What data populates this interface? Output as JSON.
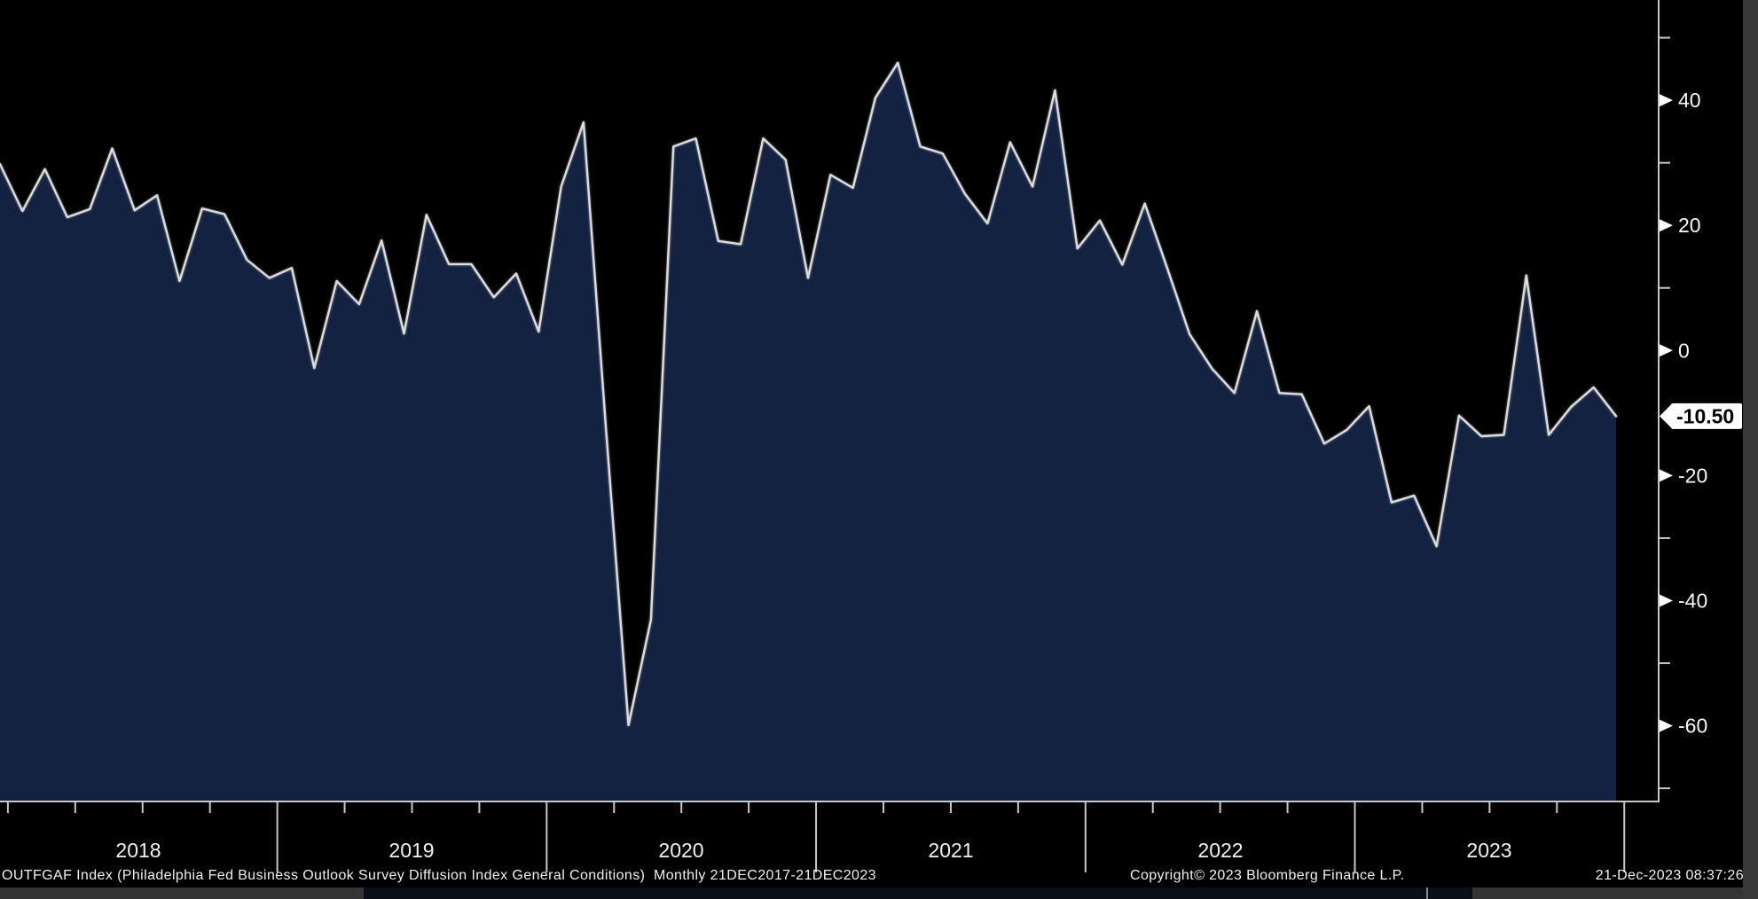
{
  "footer": {
    "description": "OUTFGAF Index (Philadelphia Fed Business Outlook Survey Diffusion Index General Conditions)  Monthly 21DEC2017-21DEC2023",
    "copyright": "Copyright© 2023 Bloomberg Finance L.P.",
    "timestamp": "21-Dec-2023 08:37:26"
  },
  "y_axis": {
    "labeled_ticks": [
      40,
      20,
      0,
      -20,
      -40,
      -60
    ],
    "minor_ticks": [
      50,
      30,
      10,
      -30,
      -50,
      -70
    ],
    "last_value": -10.5,
    "last_value_label": "-10.50"
  },
  "x_axis": {
    "year_labels": [
      "2018",
      "2019",
      "2020",
      "2021",
      "2022",
      "2023"
    ]
  },
  "colors": {
    "background": "#000000",
    "area_fill": "#132240",
    "line": "#dcdcdc",
    "axis": "#c8c8c8",
    "tick_label": "#f7f7f7",
    "year_label": "#f0f0f0",
    "badge_bg": "#ffffff",
    "badge_text": "#000000",
    "panel_gray": "#383838"
  },
  "chart_data": {
    "type": "area",
    "title": "OUTFGAF Index (Philadelphia Fed Business Outlook Survey Diffusion Index General Conditions)",
    "periodicity": "Monthly",
    "date_range": "21DEC2017-21DEC2023",
    "ylim": [
      -70,
      52
    ],
    "grid": false,
    "legend_position": "none",
    "x": [
      "2017-12",
      "2018-01",
      "2018-02",
      "2018-03",
      "2018-04",
      "2018-05",
      "2018-06",
      "2018-07",
      "2018-08",
      "2018-09",
      "2018-10",
      "2018-11",
      "2018-12",
      "2019-01",
      "2019-02",
      "2019-03",
      "2019-04",
      "2019-05",
      "2019-06",
      "2019-07",
      "2019-08",
      "2019-09",
      "2019-10",
      "2019-11",
      "2019-12",
      "2020-01",
      "2020-02",
      "2020-03",
      "2020-04",
      "2020-05",
      "2020-06",
      "2020-07",
      "2020-08",
      "2020-09",
      "2020-10",
      "2020-11",
      "2020-12",
      "2021-01",
      "2021-02",
      "2021-03",
      "2021-04",
      "2021-05",
      "2021-06",
      "2021-07",
      "2021-08",
      "2021-09",
      "2021-10",
      "2021-11",
      "2021-12",
      "2022-01",
      "2022-02",
      "2022-03",
      "2022-04",
      "2022-05",
      "2022-06",
      "2022-07",
      "2022-08",
      "2022-09",
      "2022-10",
      "2022-11",
      "2022-12",
      "2023-01",
      "2023-02",
      "2023-03",
      "2023-04",
      "2023-05",
      "2023-06",
      "2023-07",
      "2023-08",
      "2023-09",
      "2023-10",
      "2023-11",
      "2023-12"
    ],
    "values": [
      29.8,
      22.3,
      29.0,
      21.3,
      22.6,
      32.3,
      22.4,
      24.8,
      11.1,
      22.7,
      21.8,
      14.5,
      11.6,
      13.2,
      -2.8,
      11.1,
      7.4,
      17.6,
      2.7,
      21.7,
      13.8,
      13.8,
      8.5,
      12.3,
      3.0,
      26.2,
      36.5,
      -12.7,
      -59.9,
      -43.0,
      32.6,
      33.9,
      17.5,
      17.0,
      33.9,
      30.5,
      11.6,
      28.1,
      26.0,
      40.4,
      46.0,
      32.6,
      31.5,
      25.0,
      20.3,
      33.3,
      26.2,
      41.6,
      16.3,
      20.8,
      13.7,
      23.5,
      13.2,
      2.6,
      -2.9,
      -6.8,
      6.3,
      -6.8,
      -7.0,
      -14.9,
      -12.7,
      -8.9,
      -24.3,
      -23.2,
      -31.3,
      -10.4,
      -13.7,
      -13.5,
      12.0,
      -13.5,
      -9.0,
      -5.9,
      -10.5
    ]
  }
}
